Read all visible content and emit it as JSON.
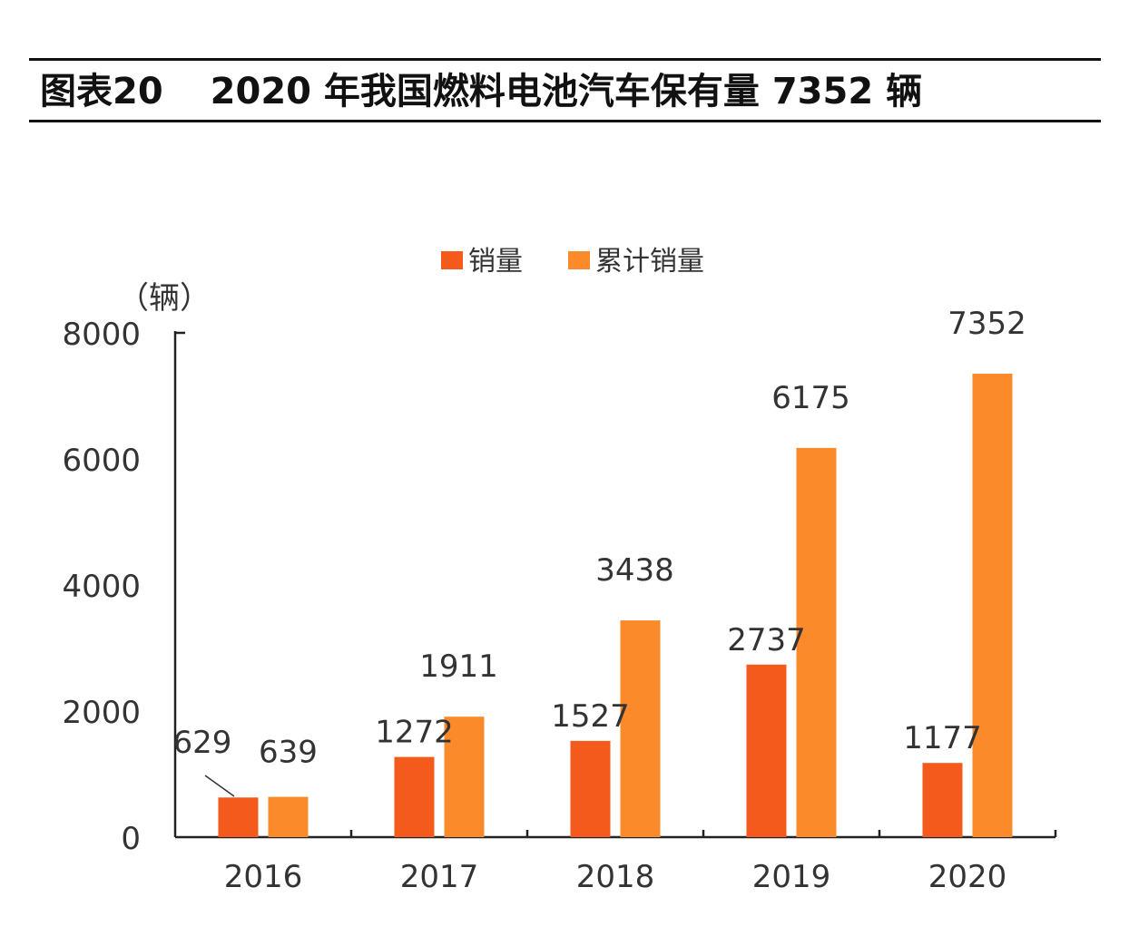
{
  "figure": {
    "number": "图表20",
    "title": "2020 年我国燃料电池汽车保有量 7352 辆"
  },
  "colors": {
    "sales": "#F35A1B",
    "cumulative": "#FB8A2B",
    "axis": "#222222",
    "text": "#333333"
  },
  "chart_data": {
    "type": "bar",
    "title": "",
    "ylabel": "（辆）",
    "xlabel": "",
    "ylim": [
      0,
      8000
    ],
    "yticks": [
      0,
      2000,
      4000,
      6000,
      8000
    ],
    "categories": [
      "2016",
      "2017",
      "2018",
      "2019",
      "2020"
    ],
    "series": [
      {
        "name": "销量",
        "values": [
          629,
          1272,
          1527,
          2737,
          1177
        ]
      },
      {
        "name": "累计销量",
        "values": [
          639,
          1911,
          3438,
          6175,
          7352
        ]
      }
    ],
    "data_labels": {
      "sales": [
        "629",
        "1272",
        "1527",
        "2737",
        "1177"
      ],
      "cumulative": [
        "639",
        "1911",
        "3438",
        "6175",
        "7352"
      ]
    },
    "legend_position": "top-center",
    "grid": false
  }
}
